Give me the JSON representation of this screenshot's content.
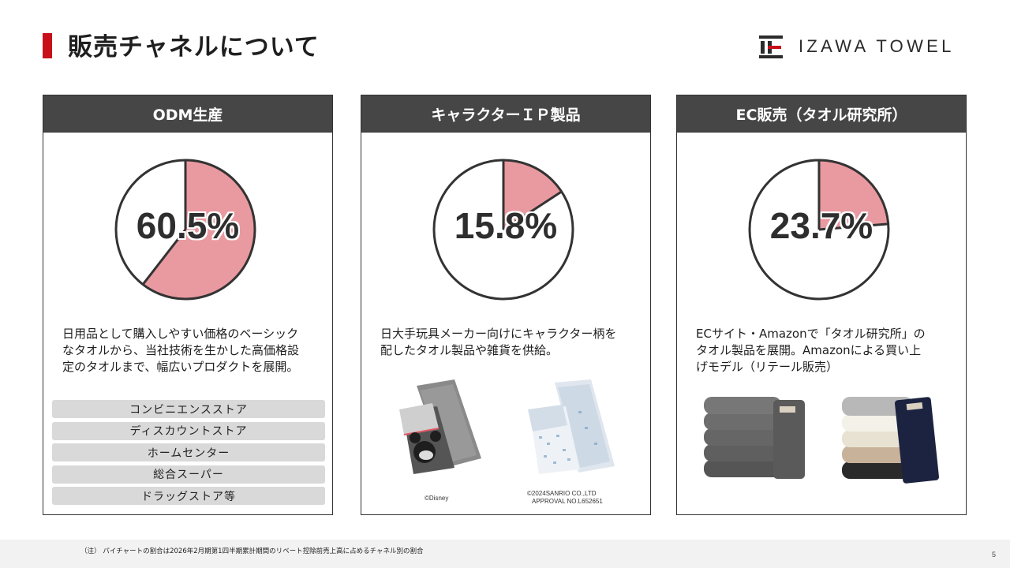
{
  "page": {
    "title": "販売チャネルについて",
    "number": "5"
  },
  "logo": {
    "text": "IZAWA TOWEL"
  },
  "colors": {
    "accent": "#c8101b",
    "pie_fill": "#e99aa0",
    "header_bg": "#464646"
  },
  "panels": [
    {
      "header": "ODM生産",
      "percent_label": "60.5%",
      "description": [
        "日用品として購入しやすい価格のベーシック",
        "なタオルから、当社技術を生かした高価格設",
        "定のタオルまで、幅広いプロダクトを展開。"
      ],
      "channels": [
        "コンビニエンスストア",
        "ディスカウントストア",
        "ホームセンター",
        "総合スーパー",
        "ドラッグストア等"
      ]
    },
    {
      "header": "キャラクターＩＰ製品",
      "percent_label": "15.8%",
      "description": [
        "日大手玩具メーカー向けにキャラクター柄を",
        "配したタオル製品や雑貨を供給。"
      ],
      "copyright_left": "©Disney",
      "copyright_right": [
        "©2024SANRIO CO.,LTD",
        "APPROVAL NO.L652651"
      ]
    },
    {
      "header": "EC販売（タオル研究所）",
      "percent_label": "23.7%",
      "description": [
        "ECサイト・Amazonで「タオル研究所」の",
        "タオル製品を展開。Amazonによる買い上",
        "げモデル（リテール販売）"
      ]
    }
  ],
  "chart_data": [
    {
      "type": "pie",
      "title": "ODM生産",
      "values": [
        60.5
      ],
      "unit": "%"
    },
    {
      "type": "pie",
      "title": "キャラクターＩＰ製品",
      "values": [
        15.8
      ],
      "unit": "%"
    },
    {
      "type": "pie",
      "title": "EC販売（タオル研究所）",
      "values": [
        23.7
      ],
      "unit": "%"
    }
  ],
  "footer": {
    "note": "（注） パイチャートの割合は2026年2月期第1四半期累計期間のリベート控除前売上高に占めるチャネル別の割合"
  }
}
